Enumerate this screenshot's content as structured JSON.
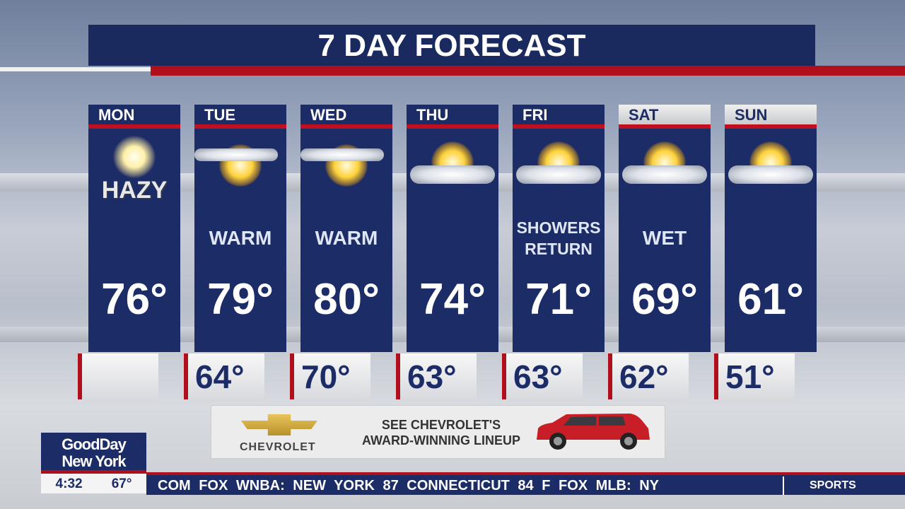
{
  "title": "7 DAY FORECAST",
  "days": [
    {
      "day": "MON",
      "icon": "hazy-sun",
      "desc": "HAZY",
      "high": "76°",
      "low": ""
    },
    {
      "day": "TUE",
      "icon": "sun-cloud",
      "desc": "WARM",
      "high": "79°",
      "low": "64°"
    },
    {
      "day": "WED",
      "icon": "sun-cloud",
      "desc": "WARM",
      "high": "80°",
      "low": "70°"
    },
    {
      "day": "THU",
      "icon": "partly-cloudy",
      "desc": "",
      "high": "74°",
      "low": "63°"
    },
    {
      "day": "FRI",
      "icon": "partly-cloudy",
      "desc": "SHOWERS RETURN",
      "high": "71°",
      "low": "63°"
    },
    {
      "day": "SAT",
      "icon": "partly-cloudy",
      "desc": "WET",
      "high": "69°",
      "low": "62°"
    },
    {
      "day": "SUN",
      "icon": "partly-cloudy",
      "desc": "",
      "high": "61°",
      "low": "51°"
    }
  ],
  "ad": {
    "brand": "CHEVROLET",
    "line1": "SEE CHEVROLET'S",
    "line2": "AWARD-WINNING LINEUP"
  },
  "show": {
    "line1": "GoodDay",
    "line2": "New York",
    "time": "4:32",
    "temp": "67°"
  },
  "ticker": {
    "text": "COM   FOX   WNBA:  NEW YORK  87  CONNECTICUT  84  F   FOX   MLB:  NY",
    "section": "SPORTS"
  },
  "colors": {
    "navy": "#1c2c66",
    "red": "#b0101c"
  }
}
